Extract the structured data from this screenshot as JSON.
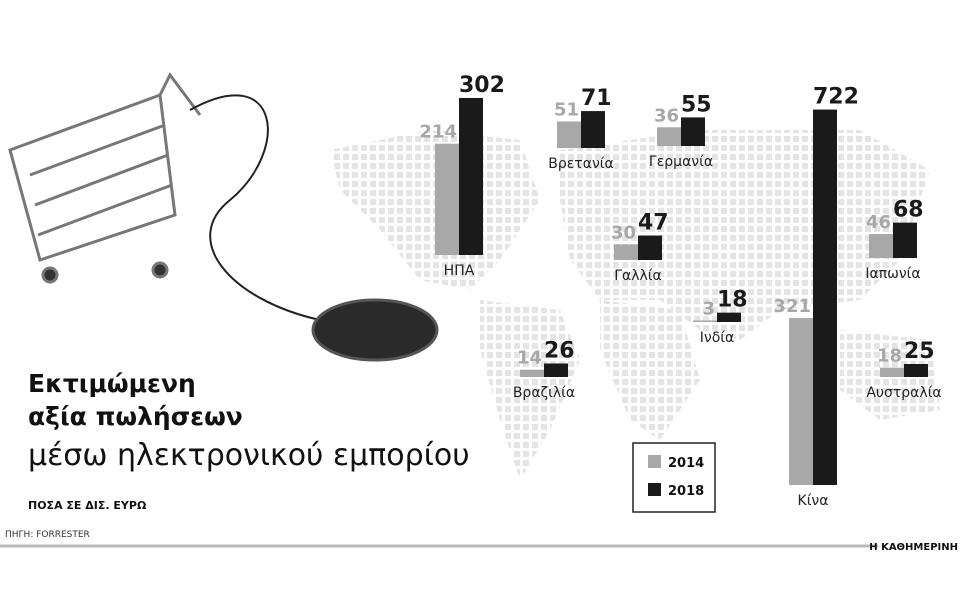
{
  "chart_data": {
    "type": "bar",
    "title": [
      "Εκτιμώμενη",
      "αξία πωλήσεων"
    ],
    "subtitle": "μέσω ηλεκτρονικού εμπορίου",
    "units": "ΠΟΣΑ ΣΕ ΔΙΣ. ΕΥΡΩ",
    "source": "ΠΗΓΗ: FORRESTER",
    "brand": "Η ΚΑΘΗΜΕΡΙΝΗ",
    "categories": [
      "ΗΠΑ",
      "Βρετανία",
      "Γερμανία",
      "Γαλλία",
      "Ινδία",
      "Κίνα",
      "Ιαπωνία",
      "Βραζιλία",
      "Αυστραλία"
    ],
    "series": [
      {
        "name": "2014",
        "color": "#a8a8a8",
        "values": [
          214,
          51,
          36,
          30,
          3,
          321,
          46,
          14,
          18
        ]
      },
      {
        "name": "2018",
        "color": "#1a1a1a",
        "values": [
          302,
          71,
          55,
          47,
          18,
          722,
          68,
          26,
          25
        ]
      }
    ]
  }
}
